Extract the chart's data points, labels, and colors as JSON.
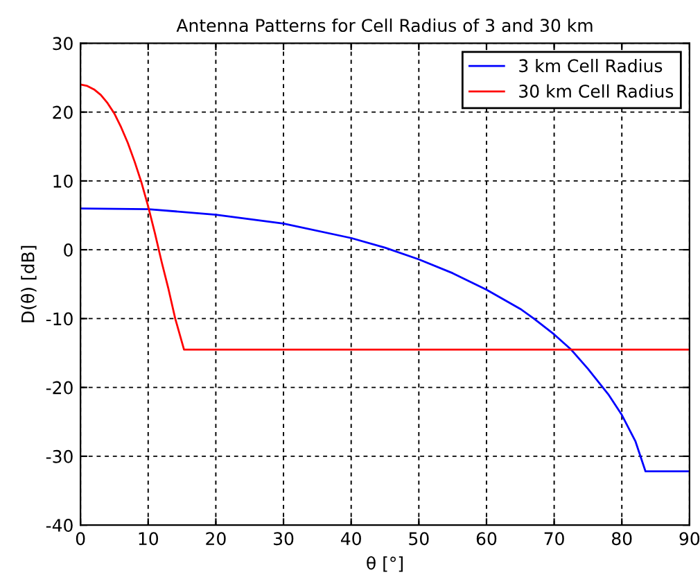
{
  "chart_data": {
    "type": "line",
    "title": "Antenna Patterns for Cell Radius of 3 and 30 km",
    "xlabel": "θ [°]",
    "ylabel": "D(θ) [dB]",
    "xlim": [
      0,
      90
    ],
    "ylim": [
      -40,
      30
    ],
    "xticks": [
      0,
      10,
      20,
      30,
      40,
      50,
      60,
      70,
      80,
      90
    ],
    "yticks": [
      -40,
      -30,
      -20,
      -10,
      0,
      10,
      20,
      30
    ],
    "grid": true,
    "legend": "top right",
    "marker": "none",
    "line_style": "solid",
    "series": [
      {
        "name": "3 km Cell Radius",
        "color": "#0000ff",
        "x": [
          0,
          10,
          20,
          30,
          40,
          45,
          50,
          55,
          60,
          65,
          67,
          70,
          72.5,
          75,
          78,
          80,
          82,
          83.5,
          90
        ],
        "values": [
          6,
          5.9,
          5.1,
          3.8,
          1.7,
          0.3,
          -1.4,
          -3.4,
          -5.8,
          -8.6,
          -10,
          -12.3,
          -14.5,
          -17.3,
          -21,
          -24,
          -27.8,
          -32.2,
          -32.2
        ]
      },
      {
        "name": "30 km Cell Radius",
        "color": "#ff0000",
        "x": [
          0,
          1,
          2,
          3,
          4,
          5,
          6,
          7,
          8,
          9,
          10,
          11,
          12,
          13,
          14,
          15.3,
          90
        ],
        "values": [
          24,
          23.8,
          23.3,
          22.5,
          21.3,
          19.8,
          17.8,
          15.5,
          12.8,
          9.8,
          6.3,
          2.4,
          -1.8,
          -5.7,
          -10,
          -14.5,
          -14.5
        ]
      }
    ]
  }
}
